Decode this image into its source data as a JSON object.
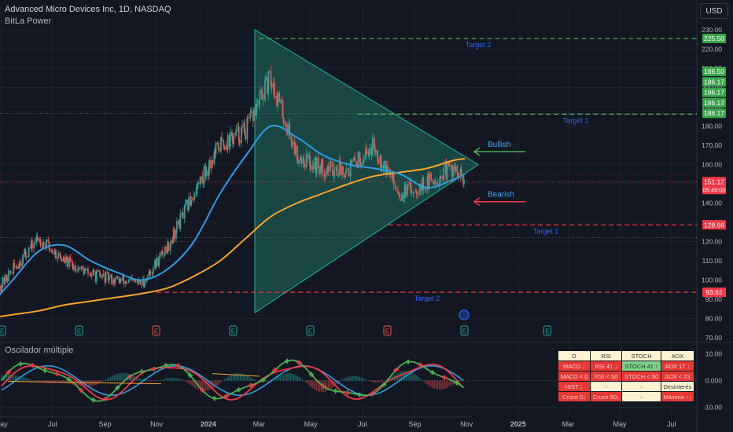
{
  "header": {
    "title": "Advanced Micro Devices Inc, 1D, NASDAQ",
    "indicator": "BitLa Power",
    "currency_button": "USD"
  },
  "oscillator": {
    "title": "Oscilador múltiple",
    "table": {
      "headers": [
        "D",
        "RSI",
        "STOCH",
        "ADX"
      ],
      "rows": [
        [
          {
            "text": "MACD ↓",
            "tone": "red"
          },
          {
            "text": "RSI 41 ↓",
            "tone": "red"
          },
          {
            "text": "STOCH 41 ↑",
            "tone": "green"
          },
          {
            "text": "ADX 17 ↓",
            "tone": "red"
          }
        ],
        [
          {
            "text": "MACD < 0",
            "tone": "red"
          },
          {
            "text": "RSI < 50",
            "tone": "red"
          },
          {
            "text": "STOCH < 50",
            "tone": "red"
          },
          {
            "text": "ADX < 23",
            "tone": "red"
          }
        ],
        [
          {
            "text": "HIST ↓",
            "tone": "red"
          },
          {
            "text": "-",
            "tone": "cream"
          },
          {
            "text": "-",
            "tone": "cream"
          },
          {
            "text": "Desinterés",
            "tone": "cream"
          }
        ],
        [
          {
            "text": "Cruce 0↓",
            "tone": "red"
          },
          {
            "text": "Cruce 50↓",
            "tone": "red"
          },
          {
            "text": "-",
            "tone": "cream"
          },
          {
            "text": "Máximo ↑↓",
            "tone": "red"
          }
        ]
      ]
    }
  },
  "colors": {
    "background": "#131722",
    "grid": "#1e222d",
    "ma_blue": "#2f9de0",
    "ma_orange": "#f7a32b",
    "triangle_fill": "#1f6b5f",
    "triangle_stroke": "#1e9e8c",
    "bull": "#26a69a",
    "bear": "#ef5350",
    "target_green": "#4caf50",
    "target_red": "#f23645",
    "label_blue": "#2962ff",
    "osc_green": "#4caf50",
    "osc_red": "#f23645",
    "osc_blue": "#2f9de0"
  },
  "chart_data": {
    "type": "line",
    "title": "Advanced Micro Devices Inc, 1D, NASDAQ",
    "price_axis": {
      "ticks": [
        70,
        80,
        90,
        100,
        110,
        120,
        130,
        140,
        150,
        160,
        170,
        180,
        190,
        200,
        210,
        220,
        230
      ],
      "ylim": [
        70,
        230
      ]
    },
    "time_axis": {
      "labels": [
        "May",
        "Jul",
        "Sep",
        "Nov",
        "2024",
        "Mar",
        "May",
        "Jul",
        "Sep",
        "Nov",
        "2025",
        "Mar",
        "May",
        "Jul"
      ],
      "range": [
        "2023-04-30",
        "2025-07-31"
      ]
    },
    "price_x": [
      "2023-04",
      "2023-05",
      "2023-06",
      "2023-07",
      "2023-08",
      "2023-09",
      "2023-10",
      "2023-11",
      "2023-12",
      "2024-01",
      "2024-02",
      "2024-03",
      "2024-04",
      "2024-05",
      "2024-06",
      "2024-07",
      "2024-08",
      "2024-09",
      "2024-10",
      "2024-10-30"
    ],
    "series": [
      {
        "name": "Price",
        "values": [
          88,
          105,
          122,
          110,
          103,
          100,
          98,
          118,
          145,
          170,
          178,
          205,
          165,
          158,
          158,
          170,
          145,
          150,
          158,
          151
        ]
      },
      {
        "values": [
          85,
          100,
          115,
          118,
          110,
          104,
          100,
          106,
          120,
          145,
          165,
          180,
          174,
          165,
          160,
          158,
          155,
          148,
          152,
          155
        ]
      },
      {
        "values": [
          80,
          82,
          84,
          87,
          89,
          91,
          93,
          96,
          102,
          110,
          122,
          133,
          140,
          145,
          150,
          154,
          156,
          158,
          162,
          163
        ]
      }
    ],
    "price_labels": [
      {
        "value": 225.5,
        "text": "225.50",
        "tone": "green"
      },
      {
        "value": 186.5,
        "text": "186.50",
        "tone": "green"
      },
      {
        "value": 186.17,
        "text": "186.17",
        "tone": "green"
      },
      {
        "value": 186.17,
        "text": "186.17",
        "tone": "green"
      },
      {
        "value": 186.17,
        "text": "186.17",
        "tone": "green"
      },
      {
        "value": 186.17,
        "text": "186.17",
        "tone": "green"
      },
      {
        "value": 151.12,
        "text": "151.12",
        "sub": "05:49:00",
        "tone": "red"
      },
      {
        "value": 128.66,
        "text": "128.66",
        "tone": "red"
      },
      {
        "value": 93.62,
        "text": "93.62",
        "tone": "red"
      }
    ],
    "target_lines": [
      {
        "value": 225.5,
        "label": "Target 2",
        "tone": "green",
        "start": "2024-03-01"
      },
      {
        "value": 186.17,
        "label": "Target 1",
        "tone": "green",
        "start": "2024-06-25"
      },
      {
        "value": 128.66,
        "label": "Target 1",
        "tone": "red",
        "start": "2024-08-01"
      },
      {
        "value": 93.62,
        "label": "Target 2",
        "tone": "red",
        "start": "2023-11-01"
      }
    ],
    "triangle": {
      "points": [
        [
          "2024-02-25",
          230
        ],
        [
          "2024-02-25",
          83
        ],
        [
          "2024-11-15",
          160
        ]
      ]
    },
    "annotations": [
      {
        "text": "Bullish",
        "x": "2024-11-05",
        "value": 170,
        "tone": "green"
      },
      {
        "text": "Bearish",
        "x": "2024-11-05",
        "value": 144,
        "tone": "red"
      }
    ],
    "earnings_markers": [
      "2023-05-02",
      "2023-08-01",
      "2023-10-31",
      "2024-01-30",
      "2024-04-30",
      "2024-07-30",
      "2024-10-29",
      "2025-02-04"
    ],
    "oscillator": {
      "ticks": [
        10.0,
        0.0,
        -10.0
      ],
      "tick_labels": [
        "10.00",
        "0.000",
        "-10.00"
      ],
      "ylim": [
        -11,
        11
      ]
    }
  }
}
